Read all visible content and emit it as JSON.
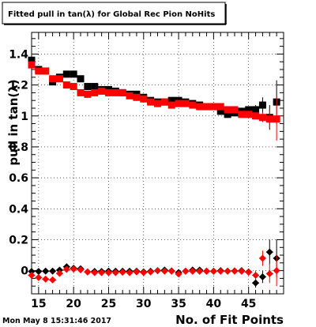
{
  "chart_data": {
    "type": "scatter",
    "title": "Fitted pull in tan(λ) for Global Rec Pion NoHits",
    "xlabel": "No. of Fit Points",
    "ylabel": "pull in tan(λ)",
    "timestamp": "Mon May  8 15:31:46 2017",
    "xlim": [
      14,
      50
    ],
    "ylim": [
      -0.15,
      1.54
    ],
    "x_ticks": [
      15,
      20,
      25,
      30,
      35,
      40,
      45
    ],
    "y_ticks": [
      0,
      0.2,
      0.4,
      0.6,
      0.8,
      1,
      1.2,
      1.4
    ],
    "y_tick_labels": [
      "0",
      "0.2",
      "0.4",
      "0.6",
      "0.8",
      "1",
      "1.2",
      "1.4"
    ],
    "grid": true,
    "colors": {
      "black_series": "#000000",
      "red_series": "#ff0000"
    },
    "series": [
      {
        "marker": "square",
        "color": "#000000",
        "x": [
          14,
          15,
          16,
          17,
          18,
          19,
          20,
          21,
          22,
          23,
          24,
          25,
          26,
          27,
          28,
          29,
          30,
          31,
          32,
          33,
          34,
          35,
          36,
          37,
          38,
          39,
          40,
          41,
          42,
          43,
          44,
          45,
          46,
          47,
          48,
          49
        ],
        "y": [
          1.36,
          1.3,
          1.29,
          1.22,
          1.25,
          1.27,
          1.27,
          1.24,
          1.19,
          1.19,
          1.17,
          1.17,
          1.16,
          1.15,
          1.14,
          1.14,
          1.12,
          1.1,
          1.09,
          1.09,
          1.1,
          1.1,
          1.09,
          1.08,
          1.07,
          1.06,
          1.06,
          1.03,
          1.01,
          1.02,
          1.03,
          1.04,
          1.04,
          1.07,
          0.99,
          1.09
        ],
        "err": [
          0.02,
          0.02,
          0.02,
          0.02,
          0.02,
          0.02,
          0.01,
          0.01,
          0.01,
          0.01,
          0.01,
          0.01,
          0.01,
          0.01,
          0.01,
          0.01,
          0.01,
          0.01,
          0.01,
          0.01,
          0.01,
          0.01,
          0.01,
          0.01,
          0.01,
          0.01,
          0.01,
          0.01,
          0.01,
          0.01,
          0.02,
          0.02,
          0.03,
          0.05,
          0.08,
          0.14
        ]
      },
      {
        "marker": "square",
        "color": "#ff0000",
        "x": [
          14,
          15,
          16,
          17,
          18,
          19,
          20,
          21,
          22,
          23,
          24,
          25,
          26,
          27,
          28,
          29,
          30,
          31,
          32,
          33,
          34,
          35,
          36,
          37,
          38,
          39,
          40,
          41,
          42,
          43,
          44,
          45,
          46,
          47,
          48,
          49
        ],
        "y": [
          1.33,
          1.29,
          1.29,
          1.24,
          1.24,
          1.2,
          1.19,
          1.15,
          1.14,
          1.15,
          1.16,
          1.15,
          1.15,
          1.15,
          1.13,
          1.12,
          1.11,
          1.09,
          1.08,
          1.09,
          1.07,
          1.08,
          1.08,
          1.07,
          1.06,
          1.06,
          1.06,
          1.06,
          1.04,
          1.04,
          1.01,
          1.01,
          1.0,
          0.99,
          0.98,
          0.98
        ],
        "err": [
          0.02,
          0.02,
          0.02,
          0.02,
          0.02,
          0.02,
          0.01,
          0.01,
          0.01,
          0.01,
          0.01,
          0.01,
          0.01,
          0.01,
          0.01,
          0.01,
          0.01,
          0.01,
          0.01,
          0.01,
          0.01,
          0.01,
          0.01,
          0.01,
          0.01,
          0.01,
          0.01,
          0.01,
          0.01,
          0.01,
          0.02,
          0.02,
          0.02,
          0.03,
          0.06,
          0.14
        ]
      },
      {
        "marker": "diamond",
        "color": "#000000",
        "x": [
          14,
          15,
          16,
          17,
          18,
          19,
          20,
          21,
          22,
          23,
          24,
          25,
          26,
          27,
          28,
          29,
          30,
          31,
          32,
          33,
          34,
          35,
          36,
          37,
          38,
          39,
          40,
          41,
          42,
          43,
          44,
          45,
          46,
          47,
          48,
          49
        ],
        "y": [
          -0.005,
          -0.005,
          -0.003,
          -0.003,
          0.003,
          0.025,
          0.015,
          0.012,
          -0.008,
          -0.005,
          -0.005,
          -0.003,
          -0.004,
          -0.004,
          -0.004,
          -0.004,
          -0.008,
          -0.004,
          0.0,
          0.004,
          -0.002,
          -0.012,
          -0.004,
          0.004,
          0.004,
          -0.003,
          -0.004,
          0.0,
          -0.003,
          -0.002,
          0.0,
          -0.008,
          -0.08,
          -0.04,
          0.12,
          0.08
        ],
        "err": [
          0.01,
          0.01,
          0.01,
          0.01,
          0.01,
          0.01,
          0.01,
          0.01,
          0.01,
          0.01,
          0.01,
          0.01,
          0.01,
          0.01,
          0.01,
          0.01,
          0.01,
          0.01,
          0.01,
          0.01,
          0.01,
          0.01,
          0.01,
          0.01,
          0.01,
          0.01,
          0.01,
          0.01,
          0.01,
          0.01,
          0.01,
          0.02,
          0.03,
          0.04,
          0.08,
          0.12
        ]
      },
      {
        "marker": "diamond",
        "color": "#ff0000",
        "x": [
          14,
          15,
          16,
          17,
          18,
          19,
          20,
          21,
          22,
          23,
          24,
          25,
          26,
          27,
          28,
          29,
          30,
          31,
          32,
          33,
          34,
          35,
          36,
          37,
          38,
          39,
          40,
          41,
          42,
          43,
          44,
          45,
          46,
          47,
          48,
          49
        ],
        "y": [
          -0.03,
          -0.045,
          -0.055,
          -0.06,
          -0.018,
          0.008,
          0.01,
          0.005,
          -0.008,
          -0.013,
          -0.013,
          -0.013,
          -0.013,
          -0.01,
          -0.013,
          -0.008,
          -0.013,
          -0.008,
          0.0,
          -0.003,
          -0.004,
          -0.022,
          -0.003,
          -0.004,
          -0.004,
          -0.004,
          -0.004,
          -0.004,
          -0.003,
          -0.003,
          -0.004,
          -0.01,
          -0.03,
          0.08,
          -0.02,
          0.0
        ],
        "err": [
          0.01,
          0.01,
          0.01,
          0.01,
          0.01,
          0.01,
          0.01,
          0.01,
          0.01,
          0.01,
          0.01,
          0.01,
          0.01,
          0.01,
          0.01,
          0.01,
          0.01,
          0.01,
          0.01,
          0.01,
          0.01,
          0.01,
          0.01,
          0.01,
          0.01,
          0.01,
          0.01,
          0.01,
          0.01,
          0.01,
          0.01,
          0.02,
          0.03,
          0.05,
          0.06,
          0.1
        ]
      }
    ]
  }
}
